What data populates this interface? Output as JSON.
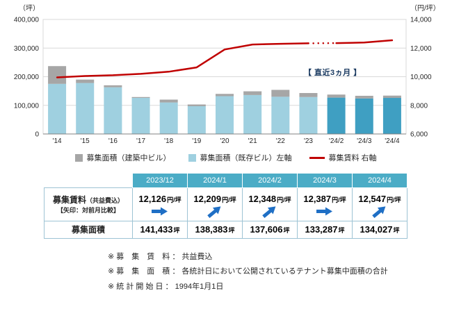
{
  "chart": {
    "unit_left": "（坪）",
    "unit_right": "（円/坪）",
    "annotation": "【 直近3ヵ月 】",
    "chart_data": {
      "type": "bar+line",
      "categories": [
        "'14",
        "'15",
        "'16",
        "'17",
        "'18",
        "'19",
        "'20",
        "'21",
        "'22",
        "'23",
        "'24/2",
        "'24/3",
        "'24/4"
      ],
      "series": [
        {
          "name": "募集面積（既存ビル）左軸",
          "type": "bar",
          "axis": "left",
          "stack": 0,
          "values": [
            175000,
            178000,
            163000,
            126000,
            110000,
            97000,
            132000,
            136000,
            130000,
            129000,
            127000,
            124000,
            126000
          ]
        },
        {
          "name": "募集面積（建築中ビル）",
          "type": "bar",
          "axis": "left",
          "stack": 1,
          "values": [
            62000,
            12000,
            7000,
            3000,
            10000,
            6000,
            8000,
            13000,
            24000,
            14000,
            10600,
            9300,
            8000
          ]
        },
        {
          "name": "募集賃料 右軸",
          "type": "line",
          "axis": "right",
          "values": [
            9950,
            10050,
            10100,
            10200,
            10350,
            10650,
            11900,
            12250,
            12300,
            12330,
            12348,
            12387,
            12547
          ]
        }
      ],
      "left_axis": {
        "label": "（坪）",
        "min": 0,
        "max": 400000,
        "step": 100000,
        "tick_labels": [
          "0",
          "100,000",
          "200,000",
          "300,000",
          "400,000"
        ]
      },
      "right_axis": {
        "label": "（円/坪）",
        "min": 6000,
        "max": 14000,
        "step": 2000,
        "tick_labels": [
          "6,000",
          "8,000",
          "10,000",
          "12,000",
          "14,000"
        ]
      },
      "highlight_from_index": 10,
      "dotted_segment": [
        9,
        10
      ],
      "grid": true,
      "legend_position": "bottom"
    }
  },
  "legend": {
    "items": [
      {
        "label": "募集面積（建築中ビル）",
        "marker": "square-gray"
      },
      {
        "label": "募集面積（既存ビル）左軸",
        "marker": "square-blue"
      },
      {
        "label": "募集賃料 右軸",
        "marker": "red-line"
      }
    ]
  },
  "table": {
    "columns": [
      "2023/12",
      "2024/1",
      "2024/2",
      "2024/3",
      "2024/4"
    ],
    "rent_row": {
      "label_main": "募集賃料",
      "label_sub": "（共益費込）",
      "label_note": "【矢印：対前月比較】",
      "unit": "円/坪",
      "values": [
        "12,126",
        "12,209",
        "12,348",
        "12,387",
        "12,547"
      ],
      "arrows": [
        "right",
        "up",
        "up",
        "right",
        "up"
      ]
    },
    "area_row": {
      "label": "募集面積",
      "unit": "坪",
      "values": [
        "141,433",
        "138,383",
        "137,606",
        "133,287",
        "134,027"
      ]
    }
  },
  "footnotes": [
    "※ 募　集　賃　料 ： 共益費込",
    "※ 募　集　面　積 ： 各統計日において公開されているテナント募集中面積の合計",
    "※ 統 計 開 始 日 ： 1994年1月1日"
  ],
  "theme": {
    "accent": "#4bacc6",
    "bar_existing": "#9fd0e0",
    "bar_existing_recent": "#3f9fc2",
    "bar_construction": "#a6a6a6",
    "rent_line": "#c00000",
    "grid": "#d9d9d9",
    "axis": "#808080",
    "arrow": "#1f6fc5",
    "annotation": "#17375e",
    "table_border": "#9dc3d4",
    "text": "#262626"
  }
}
